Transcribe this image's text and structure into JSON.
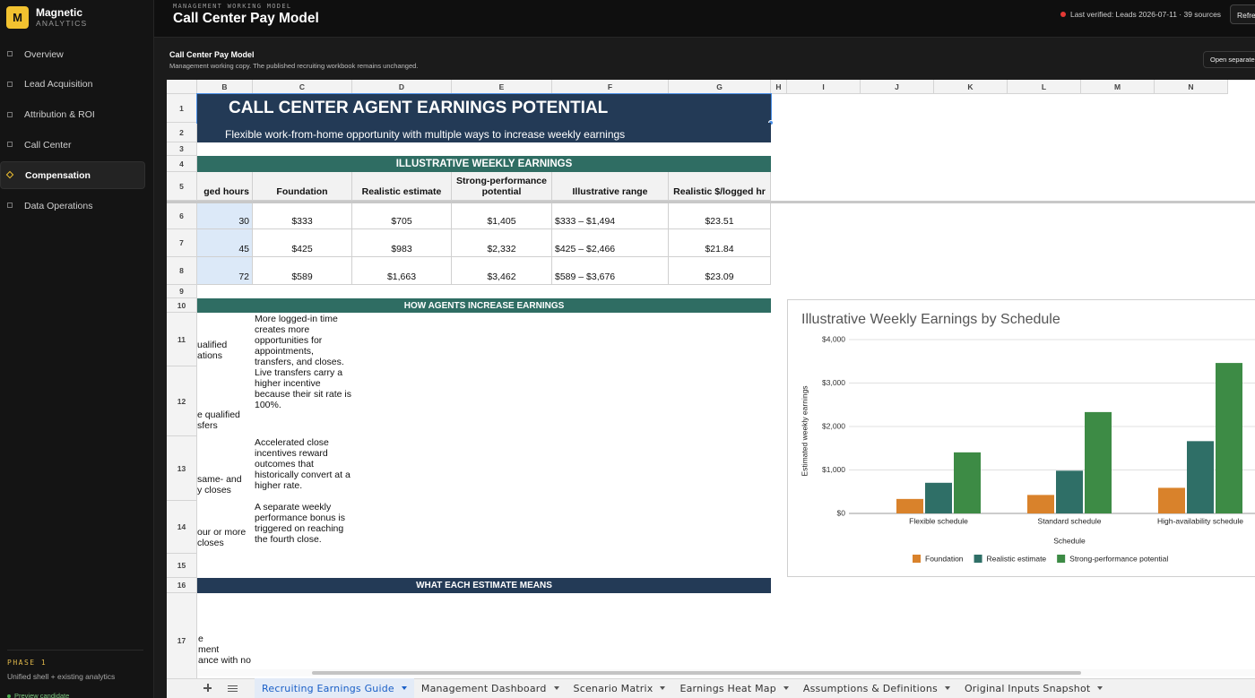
{
  "brand": {
    "logo": "M",
    "name": "Magnetic",
    "tagline": "ANALYTICS"
  },
  "nav": [
    "Overview",
    "Lead Acquisition",
    "Attribution & ROI",
    "Call Center",
    "Compensation",
    "Data Operations"
  ],
  "sidebar_footer": {
    "phase": "PHASE 1",
    "note": "Unified shell + existing analytics",
    "status": "Preview candidate"
  },
  "header": {
    "eyebrow": "MANAGEMENT WORKING MODEL",
    "title": "Call Center Pay Model",
    "verified": "Last verified: Leads 2026-07-11 · 39 sources",
    "button": "Refresh"
  },
  "section": {
    "title": "Call Center Pay Model",
    "subtitle": "Management working copy. The published recruiting workbook remains unchanged.",
    "button": "Open separate"
  },
  "sheet": {
    "columns": [
      "B",
      "C",
      "D",
      "E",
      "F",
      "G",
      "H",
      "I",
      "J",
      "K",
      "L",
      "M",
      "N"
    ],
    "rows": [
      1,
      2,
      3,
      4,
      5,
      6,
      7,
      8,
      9,
      10,
      11,
      12,
      13,
      14,
      15,
      16,
      17
    ],
    "title": "CALL CENTER AGENT EARNINGS POTENTIAL",
    "subtitle": "Flexible work-from-home opportunity with multiple ways to increase weekly earnings",
    "sections": [
      "ILLUSTRATIVE WEEKLY EARNINGS",
      "HOW AGENTS INCREASE EARNINGS",
      "WHAT EACH ESTIMATE MEANS"
    ],
    "table": {
      "header": [
        "ged hours",
        "Foundation",
        "Realistic estimate",
        "Strong-performance potential",
        "Illustrative range",
        "Realistic $/logged hr"
      ],
      "rows": [
        [
          30,
          "$333",
          "$705",
          "$1,405",
          "$333 – $1,494",
          "$23.51"
        ],
        [
          45,
          "$425",
          "$983",
          "$2,332",
          "$425 – $2,466",
          "$21.84"
        ],
        [
          72,
          "$589",
          "$1,663",
          "$3,462",
          "$589 – $3,676",
          "$23.09"
        ]
      ]
    },
    "tips": [
      {
        "left": [
          "ualified",
          "ations"
        ],
        "text": "More logged-in time creates more opportunities for appointments, transfers, and closes."
      },
      {
        "left": [
          "e qualified",
          "sfers"
        ],
        "text": "Live transfers carry a higher incentive because their sit rate is 100%."
      },
      {
        "left": [
          "same- and",
          "y closes"
        ],
        "text": "Accelerated close incentives reward outcomes that historically convert at a higher rate."
      },
      {
        "left": [
          "our or more",
          "closes"
        ],
        "text": "A separate weekly performance bonus is triggered on reaching the fourth close."
      }
    ],
    "row17": [
      "e",
      "ment",
      "ance with no"
    ]
  },
  "chart_data": {
    "type": "bar",
    "title": "Illustrative Weekly Earnings by Schedule",
    "x_label": "Schedule",
    "y_label": "Estimated weekly earnings",
    "categories": [
      "Flexible schedule",
      "Standard schedule",
      "High-availability schedule"
    ],
    "series": [
      {
        "name": "Foundation",
        "color": "#d9822b",
        "values": [
          333,
          425,
          589
        ]
      },
      {
        "name": "Realistic estimate",
        "color": "#2f6f67",
        "values": [
          705,
          983,
          1663
        ]
      },
      {
        "name": "Strong-performance potential",
        "color": "#3d8b45",
        "values": [
          1405,
          2332,
          3462
        ]
      }
    ],
    "ylim": [
      0,
      4000
    ],
    "yticks": [
      {
        "value": 0,
        "label": "$0"
      },
      {
        "value": 1000,
        "label": "$1,000"
      },
      {
        "value": 2000,
        "label": "$2,000"
      },
      {
        "value": 3000,
        "label": "$3,000"
      },
      {
        "value": 4000,
        "label": "$4,000"
      }
    ],
    "grid": true,
    "legend": "bottom"
  },
  "tabs": [
    "Recruiting Earnings Guide",
    "Management Dashboard",
    "Scenario Matrix",
    "Earnings Heat Map",
    "Assumptions & Definitions",
    "Original Inputs Snapshot"
  ]
}
